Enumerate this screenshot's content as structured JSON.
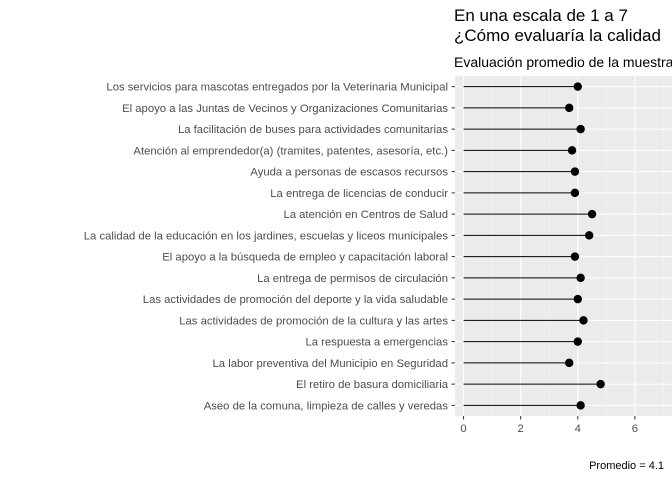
{
  "title_line1": "En una escala de 1 a 7",
  "title_line2": "¿Cómo evaluaría la calidad",
  "subtitle": "Evaluación promedio de la muestra",
  "caption": "Promedio = 4.1",
  "chart_data": {
    "type": "lollipop",
    "orientation": "horizontal",
    "title": "En una escala de 1 a 7 ¿Cómo evaluaría la calidad",
    "subtitle": "Evaluación promedio de la muestra",
    "xlim": [
      -0.3,
      7.3
    ],
    "x_ticks": [
      0,
      2,
      4,
      6
    ],
    "grid": true,
    "panel_background": "#ebebeb",
    "point_color": "#000000",
    "categories": [
      "Los servicios para mascotas entregados por la Veterinaria Municipal",
      "El apoyo a las Juntas de Vecinos y Organizaciones Comunitarias",
      "La facilitación de buses para actividades comunitarias",
      "Atención al emprendedor(a) (tramites, patentes, asesoría, etc.)",
      "Ayuda a personas de escasos recursos",
      "La entrega de licencias de conducir",
      "La atención en Centros de Salud",
      "La  calidad  de  la  educación en  los  jardines, escuelas y liceos municipales",
      "El  apoyo  a  la  búsqueda  de  empleo y capacitación laboral",
      "La entrega de permisos de circulación",
      "Las  actividades  de  promoción  del  deporte y la vida saludable",
      "Las actividades de promoción de la cultura y las artes",
      "La respuesta a emergencias",
      "La labor preventiva del Municipio en Seguridad",
      "El retiro de basura domiciliaria",
      "Aseo de la comuna, limpieza de calles y veredas"
    ],
    "values": [
      4.0,
      3.7,
      4.1,
      3.8,
      3.9,
      3.9,
      4.5,
      4.4,
      3.9,
      4.1,
      4.0,
      4.2,
      4.0,
      3.7,
      4.8,
      4.1
    ]
  }
}
